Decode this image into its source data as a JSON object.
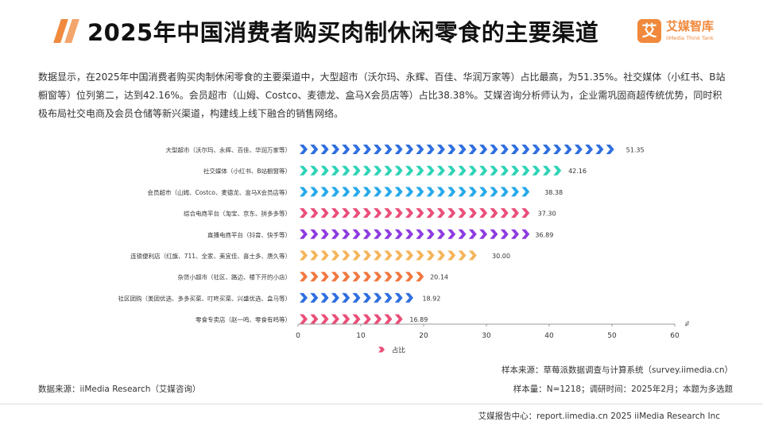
{
  "header": {
    "title": "2025年中国消费者购买肉制休闲零食的主要渠道",
    "logo_mark": "艾",
    "logo_cn": "艾媒智库",
    "logo_en": "iiMedia Think Tank"
  },
  "description": "数据显示，在2025年中国消费者购买肉制休闲零食的主要渠道中，大型超市（沃尔玛、永辉、百佳、华润万家等）占比最高，为51.35%。社交媒体（小红书、B站橱窗等）位列第二，达到42.16%。会员超市（山姆、Costco、麦德龙、盒马X会员店等）占比38.38%。艾媒咨询分析师认为，企业需巩固商超传统优势，同时积极布局社交电商及会员仓储等新兴渠道，构建线上线下融合的销售网络。",
  "chart_data": {
    "type": "bar",
    "orientation": "horizontal",
    "categories": [
      "大型超市（沃尔玛、永辉、百佳、华润万家等）",
      "社交媒体（小红书、B站橱窗等）",
      "会员超市（山姆、Costco、麦德龙、盒马X会员店等）",
      "综合电商平台（淘宝、京东、拼多多等）",
      "直播电商平台（抖音、快手等）",
      "连锁便利店（红旗、711、全家、美宜佳、喜士多、唐久等）",
      "杂货小超市（社区、路边、楼下开的小店）",
      "社区团购（美团优选、多多买菜、叮咚买菜、兴盛优选、盒马等）",
      "零食专卖店（赵一鸣、零食有鸣等）"
    ],
    "values": [
      51.35,
      42.16,
      38.38,
      37.3,
      36.89,
      30.0,
      20.14,
      18.92,
      16.89
    ],
    "value_labels": [
      "51.35",
      "42.16",
      "38.38",
      "37.30",
      "36.89",
      "30.00",
      "20.14",
      "18.92",
      "16.89"
    ],
    "bar_colors": [
      "#2f6fe0",
      "#2ed3b7",
      "#27a9ea",
      "#ea4f79",
      "#8e3ce0",
      "#f5b55b",
      "#f07840",
      "#2f6fe0",
      "#ea4f79"
    ],
    "series": [
      {
        "name": "占比",
        "values": [
          51.35,
          42.16,
          38.38,
          37.3,
          36.89,
          30.0,
          20.14,
          18.92,
          16.89
        ]
      }
    ],
    "xlim": [
      0,
      60
    ],
    "x_ticks": [
      "0",
      "10",
      "20",
      "30",
      "40",
      "50",
      "60"
    ],
    "x_unit": "%",
    "legend_color": "#ea4f79",
    "legend_position": "bottom",
    "grid": false
  },
  "footer": {
    "source_left": "数据来源：iiMedia Research（艾媒咨询）",
    "sample_source": "样本来源：草莓派数据调查与计算系统（survey.iimedia.cn）",
    "sample_size": "样本量：N=1218；调研时间：2025年2月；本题为多选题",
    "bottom": "艾媒报告中心：report.iimedia.cn   2025 iiMedia Research Inc"
  }
}
